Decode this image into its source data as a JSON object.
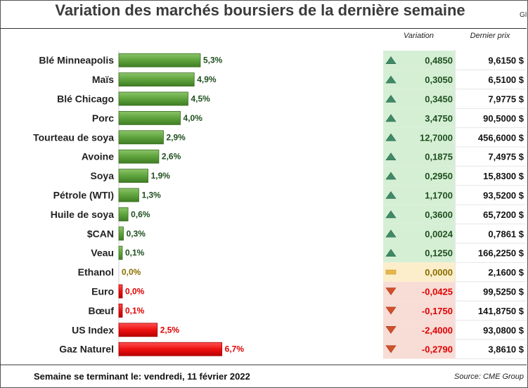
{
  "title": "Variation des marchés boursiers de la dernière semaine",
  "corner_text": "GI",
  "columns": {
    "variation": "Variation",
    "price": "Dernier prix"
  },
  "footer": {
    "week_label": "Semaine se terminant le: vendredi, 11 février 2022",
    "source": "Source: CME Group"
  },
  "colors": {
    "up_bar": "#5ea33c",
    "up_bg": "#d5efd5",
    "up_text": "#1f4f1f",
    "flat_bg": "#fdeecb",
    "flat_text": "#8a6d00",
    "flat_icon": "#e6b84a",
    "down_bar": "#ee1111",
    "down_bg": "#f8dcd6",
    "down_text": "#e00000",
    "down_icon": "#d0502a"
  },
  "chart_data": {
    "type": "bar",
    "orientation": "horizontal",
    "grid": false,
    "categories": [
      "Blé Minneapolis",
      "Maïs",
      "Blé Chicago",
      "Porc",
      "Tourteau de soya",
      "Avoine",
      "Soya",
      "Pétrole (WTI)",
      "Huile de soya",
      "$CAN",
      "Veau",
      "Ethanol",
      "Euro",
      "Bœuf",
      "US Index",
      "Gaz Naturel"
    ],
    "values": [
      5.3,
      4.9,
      4.5,
      4.0,
      2.9,
      2.6,
      1.9,
      1.3,
      0.6,
      0.3,
      0.1,
      0.0,
      0.0,
      0.1,
      2.5,
      6.7
    ],
    "value_labels": [
      "5,3%",
      "4,9%",
      "4,5%",
      "4,0%",
      "2,9%",
      "2,6%",
      "1,9%",
      "1,3%",
      "0,6%",
      "0,3%",
      "0,1%",
      "0,0%",
      "0,0%",
      "0,1%",
      "2,5%",
      "6,7%"
    ],
    "direction": [
      "up",
      "up",
      "up",
      "up",
      "up",
      "up",
      "up",
      "up",
      "up",
      "up",
      "up",
      "flat",
      "down",
      "down",
      "down",
      "down"
    ],
    "variation": [
      "0,4850",
      "0,3050",
      "0,3450",
      "3,4750",
      "12,7000",
      "0,1875",
      "0,2950",
      "1,1700",
      "0,3600",
      "0,0024",
      "0,1250",
      "0,0000",
      "-0,0425",
      "-0,1750",
      "-2,4000",
      "-0,2790"
    ],
    "price": [
      "9,6150 $",
      "6,5100 $",
      "7,9775 $",
      "90,5000 $",
      "456,6000 $",
      "7,4975 $",
      "15,8300 $",
      "93,5200 $",
      "65,7200 $",
      "0,7861 $",
      "166,2250 $",
      "2,1600 $",
      "99,5250 $",
      "141,8750 $",
      "93,0800 $",
      "3,8610 $"
    ],
    "xlim": [
      0,
      7.1
    ]
  }
}
